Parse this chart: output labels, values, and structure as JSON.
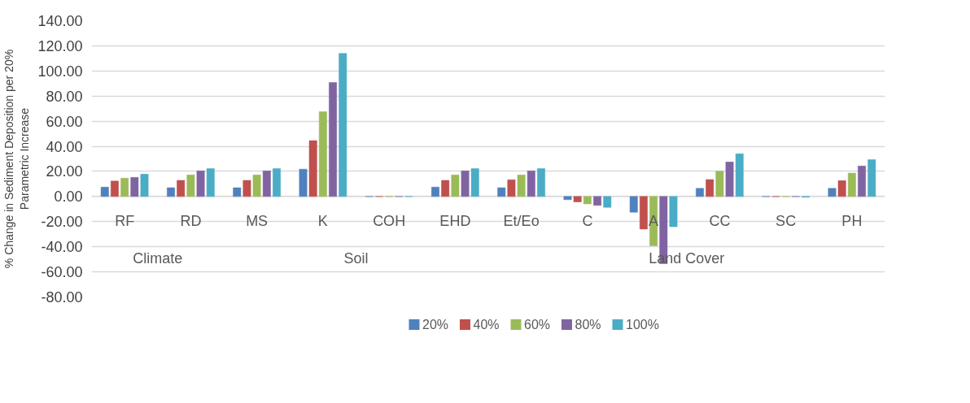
{
  "chart_data": {
    "type": "bar",
    "ylabel": "% Change in Sediment Deposition per 20% Parametric Increase",
    "categories": [
      "RF",
      "RD",
      "MS",
      "K",
      "COH",
      "EHD",
      "Et/Eo",
      "C",
      "A",
      "CC",
      "SC",
      "PH"
    ],
    "annotations": [
      "Climate",
      "Soil",
      "Land Cover"
    ],
    "series": [
      {
        "name": "20%",
        "color": "#4f81bd",
        "values": [
          7.5,
          7.0,
          7.0,
          21.8,
          0,
          7.5,
          7.0,
          -2.5,
          -12.5,
          6.5,
          0,
          6.5
        ]
      },
      {
        "name": "40%",
        "color": "#c0504d",
        "values": [
          12.3,
          12.9,
          12.9,
          44.5,
          0,
          12.9,
          13.3,
          -4.3,
          -25.9,
          13.5,
          0,
          12.7
        ]
      },
      {
        "name": "60%",
        "color": "#9bbb59",
        "values": [
          14.6,
          17.2,
          17.2,
          67.5,
          0,
          17.2,
          17.2,
          -5.9,
          -39.2,
          20.2,
          0,
          18.6
        ]
      },
      {
        "name": "80%",
        "color": "#8064a2",
        "values": [
          15.2,
          20.4,
          20.4,
          90.8,
          0,
          20.4,
          20.4,
          -7.1,
          -53.5,
          27.5,
          0,
          24.3
        ]
      },
      {
        "name": "100%",
        "color": "#4bacc6",
        "values": [
          17.8,
          22.2,
          22.2,
          114,
          0,
          22.2,
          22.2,
          -8.6,
          -24.1,
          34.1,
          -0.5,
          29.4
        ]
      }
    ],
    "ylim": [
      -80,
      140
    ],
    "yticks": [
      {
        "value": -80,
        "label": "-80.00"
      },
      {
        "value": -60,
        "label": "-60.00"
      },
      {
        "value": -40,
        "label": "-40.00"
      },
      {
        "value": -20,
        "label": "-20.00"
      },
      {
        "value": 0,
        "label": "0.00"
      },
      {
        "value": 20,
        "label": "20.00"
      },
      {
        "value": 40,
        "label": "40.00"
      },
      {
        "value": 60,
        "label": "60.00"
      },
      {
        "value": 80,
        "label": "80.00"
      },
      {
        "value": 100,
        "label": "100.00"
      },
      {
        "value": 120,
        "label": "120.00"
      },
      {
        "value": 140,
        "label": "140.00"
      }
    ],
    "grid": "y",
    "legend": "bottom"
  }
}
